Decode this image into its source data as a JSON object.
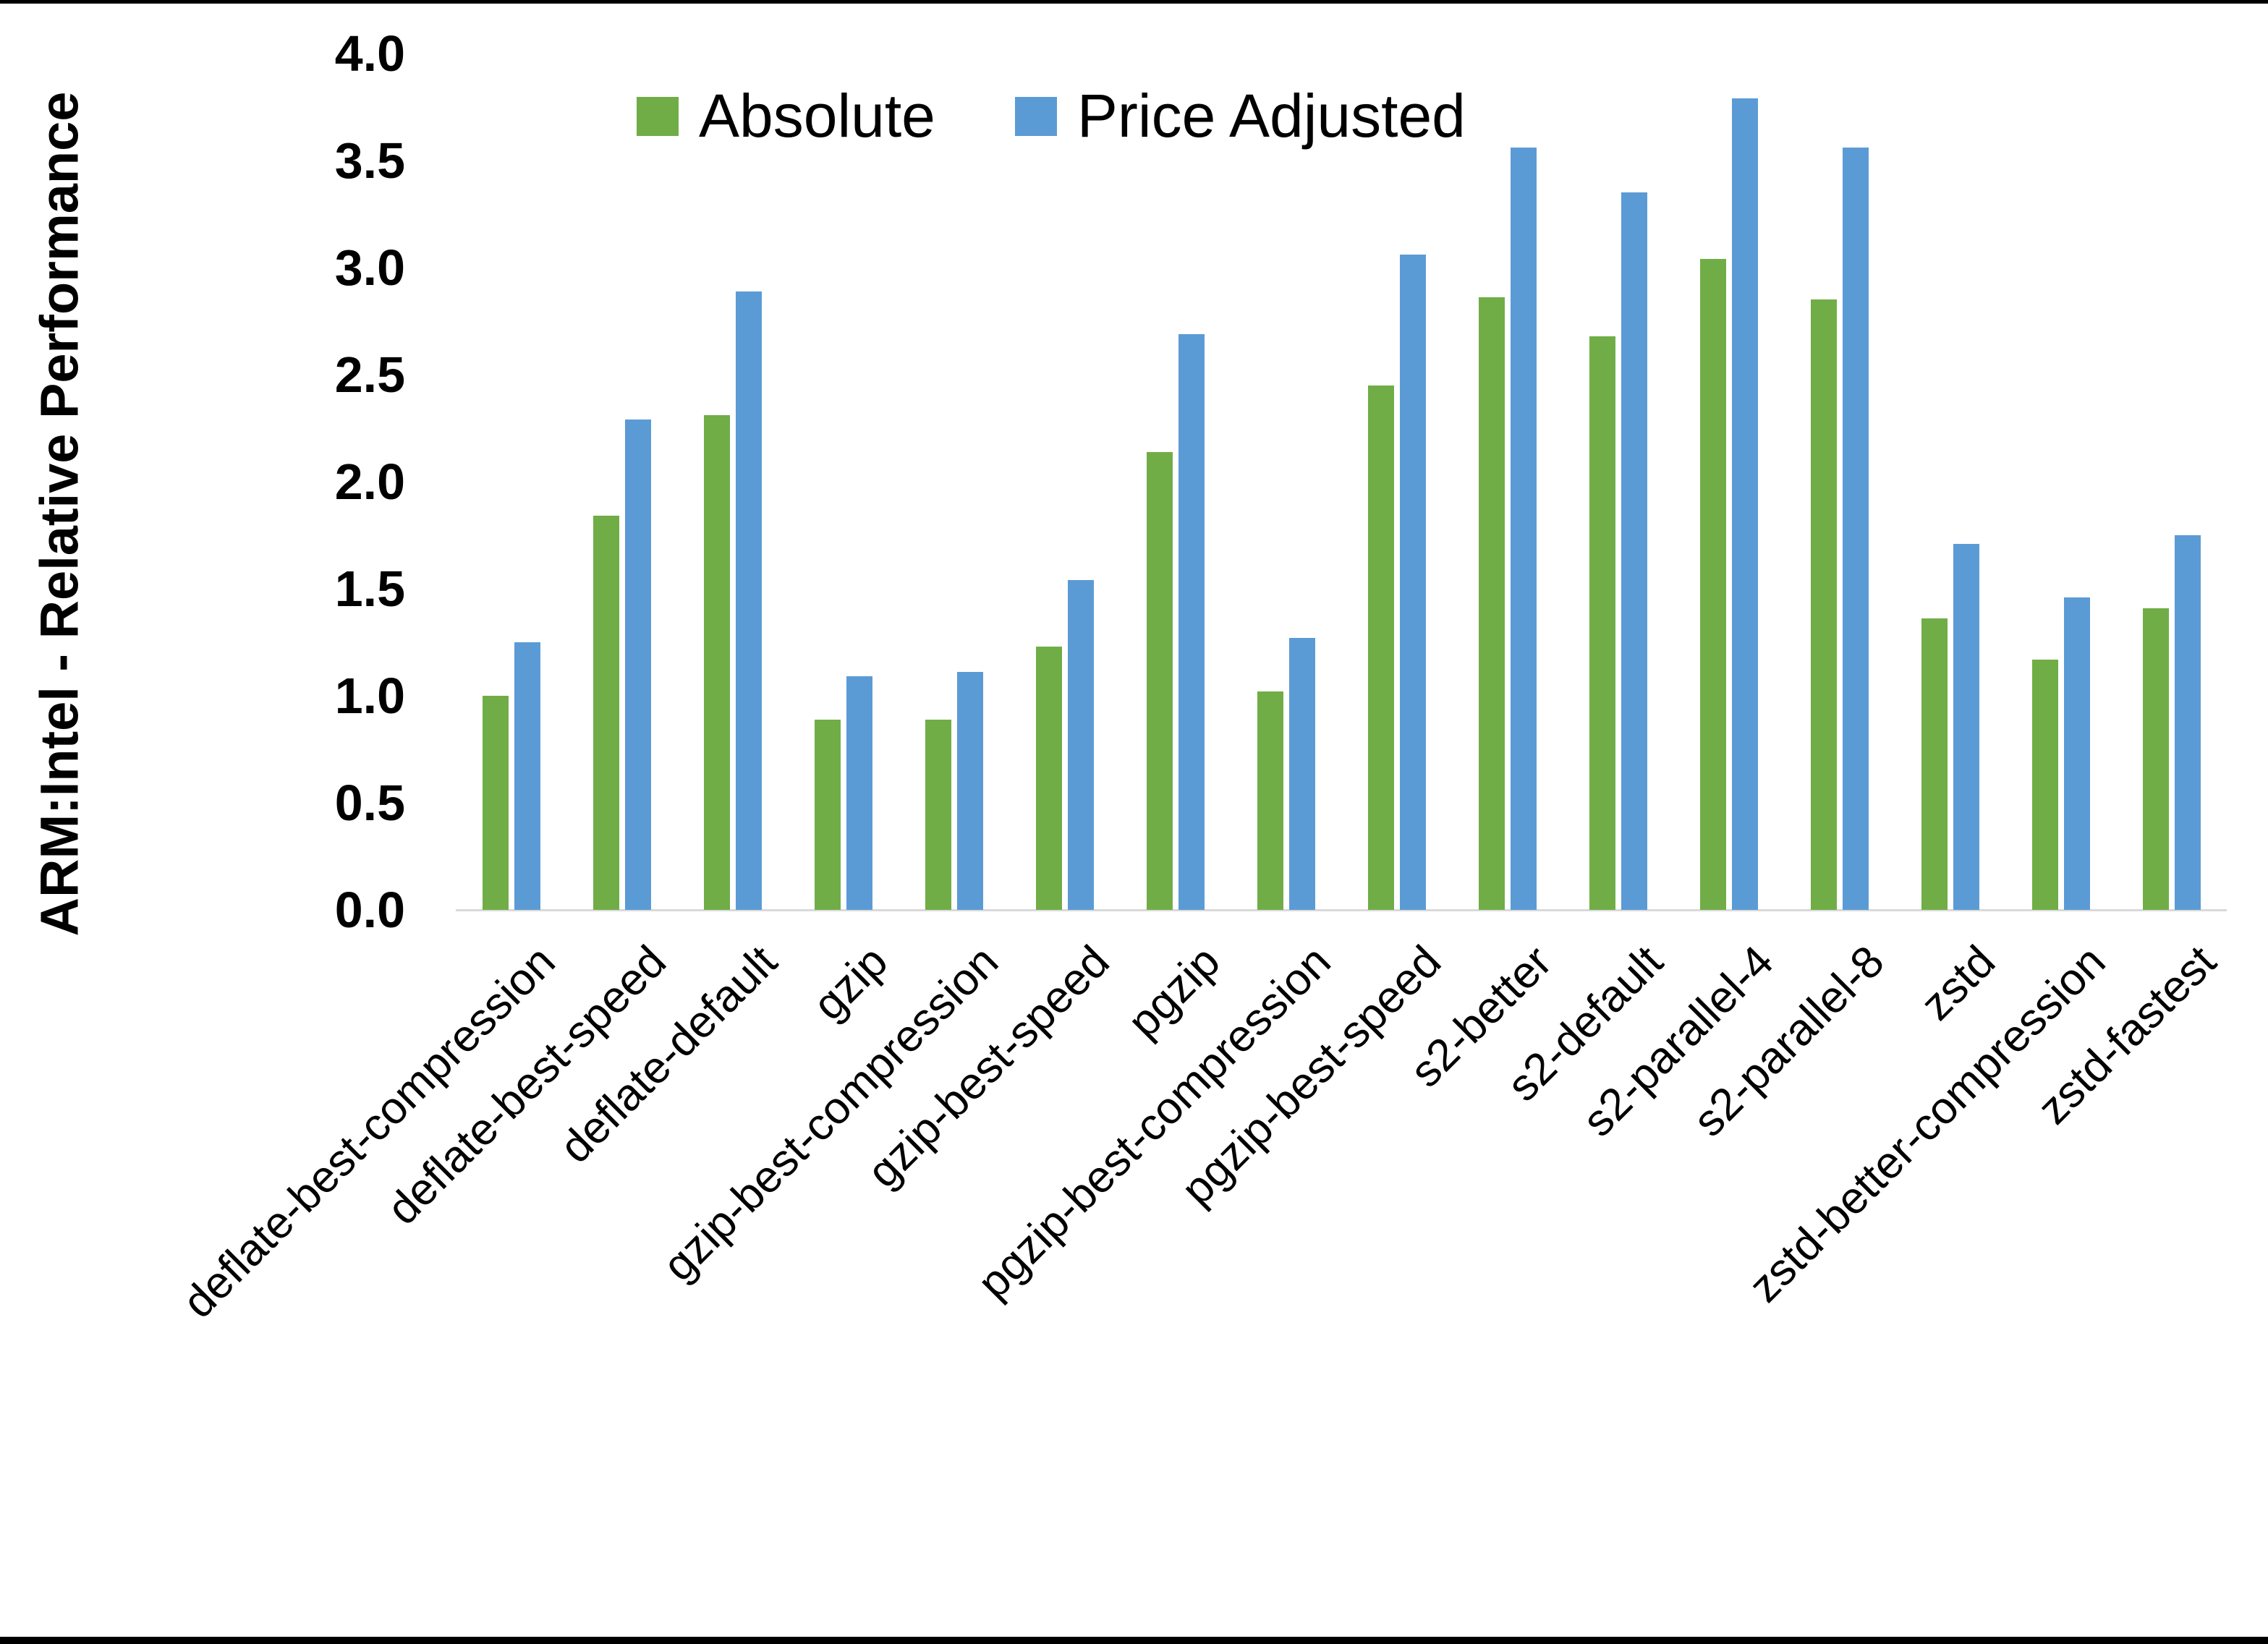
{
  "chart_data": {
    "type": "bar",
    "title": "",
    "xlabel": "",
    "ylabel": "ARM:Intel - Relative Performance",
    "ylim": [
      0.0,
      4.0
    ],
    "ytick_step": 0.5,
    "ytick_labels": [
      "0.0",
      "0.5",
      "1.0",
      "1.5",
      "2.0",
      "2.5",
      "3.0",
      "3.5",
      "4.0"
    ],
    "grid": false,
    "legend_position": "top-center",
    "categories": [
      "deflate-best-compression",
      "deflate-best-speed",
      "deflate-default",
      "gzip",
      "gzip-best-compression",
      "gzip-best-speed",
      "pgzip",
      "pgzip-best-compression",
      "pgzip-best-speed",
      "s2-better",
      "s2-default",
      "s2-parallel-4",
      "s2-parallel-8",
      "zstd",
      "zstd-better-compression",
      "zstd-fastest"
    ],
    "series": [
      {
        "name": "Absolute",
        "color": "#70AD47",
        "values": [
          1.0,
          1.84,
          2.31,
          0.89,
          0.89,
          1.23,
          2.14,
          1.02,
          2.45,
          2.86,
          2.68,
          3.04,
          2.85,
          1.36,
          1.17,
          1.41
        ]
      },
      {
        "name": "Price Adjusted",
        "color": "#5B9BD5",
        "values": [
          1.25,
          2.29,
          2.89,
          1.09,
          1.11,
          1.54,
          2.69,
          1.27,
          3.06,
          3.56,
          3.35,
          3.79,
          3.56,
          1.71,
          1.46,
          1.75
        ]
      }
    ],
    "colors": {
      "axis_line": "#d9d9d9",
      "text": "#000000",
      "background": "#ffffff"
    }
  }
}
